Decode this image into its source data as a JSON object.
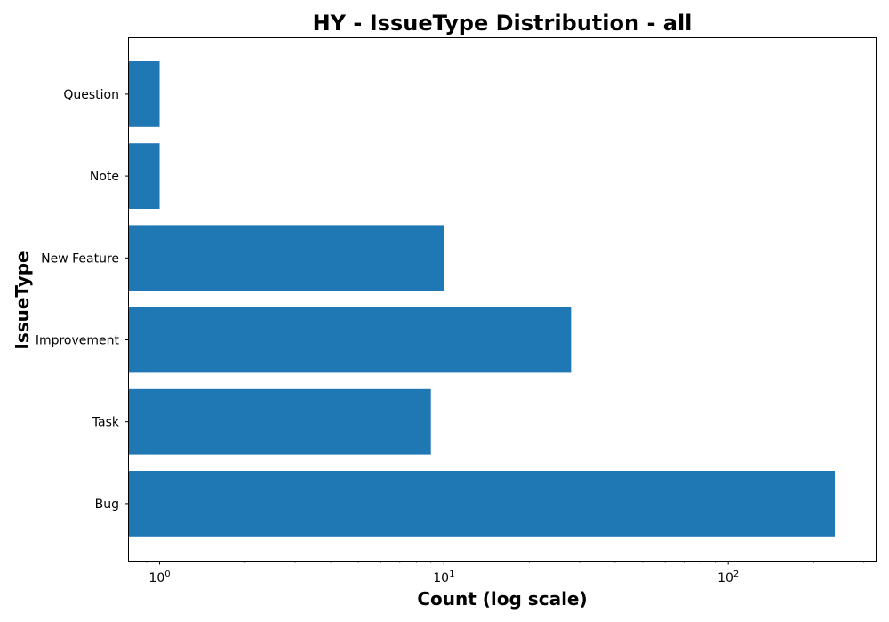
{
  "chart_data": {
    "type": "bar",
    "orientation": "horizontal",
    "title": "HY - IssueType Distribution - all",
    "xlabel": "Count (log scale)",
    "ylabel": "IssueType",
    "xscale": "log",
    "xlim": [
      0.78,
      330
    ],
    "categories": [
      "Bug",
      "Task",
      "Improvement",
      "New Feature",
      "Note",
      "Question"
    ],
    "values": [
      237,
      9,
      28,
      10,
      1,
      1
    ],
    "bar_color": "#1f77b4",
    "grid": false,
    "x_ticks": [
      {
        "value": 1,
        "base": "10",
        "exp": "0"
      },
      {
        "value": 10,
        "base": "10",
        "exp": "1"
      },
      {
        "value": 100,
        "base": "10",
        "exp": "2"
      }
    ]
  }
}
